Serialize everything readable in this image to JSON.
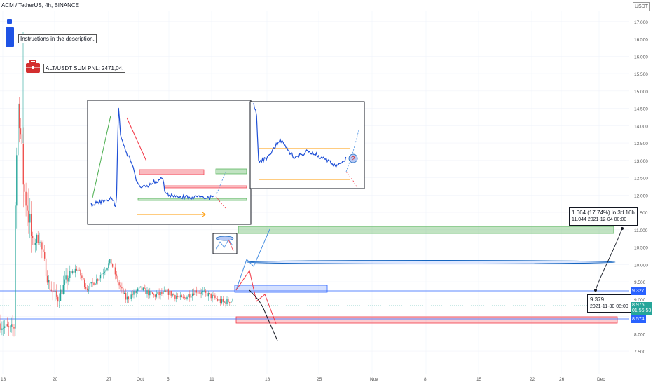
{
  "header": {
    "symbol_title": "ACM / TetherUS, 4h, BINANCE"
  },
  "notes": {
    "instructions": "Instructions in the description.",
    "pnl": "ALT/USDT SUM PNL: 2471,04."
  },
  "measure_tooltip": {
    "line1": "1.664 (17.74%) in 3d 16h",
    "line2": "11.044     2021-12-04  00:00"
  },
  "low_tooltip": {
    "line1": "9.379",
    "line2": "2021-11-30 08:00"
  },
  "price_tags": {
    "top": "USDT",
    "level_upper": "9.327",
    "current_price": "8.976",
    "countdown": "01:56:53",
    "level_lower": "8.574"
  },
  "colors": {
    "up": "#26a69a",
    "down": "#ef5350",
    "level_line": "#2962ff",
    "target_green": "#4caf50",
    "stop_red": "#f23645",
    "scenario_blue": "#1565c0"
  },
  "icons": [
    "info-icon",
    "briefcase-icon",
    "question-icon"
  ],
  "chart_data": {
    "type": "candlestick",
    "title": "ACM / TetherUS, 4h, BINANCE",
    "y_axis": {
      "position": "right",
      "ticks": [
        "17.000",
        "16.500",
        "16.000",
        "15.500",
        "15.000",
        "14.500",
        "14.000",
        "13.500",
        "13.000",
        "12.500",
        "12.000",
        "11.500",
        "11.000",
        "10.500",
        "10.000",
        "9.500",
        "9.000",
        "8.500",
        "8.000",
        "7.500"
      ],
      "range": [
        7.3,
        17.3
      ]
    },
    "x_axis": {
      "ticks": [
        "13",
        "20",
        "27",
        "Oct",
        "5",
        "11",
        "18",
        "25",
        "Nov",
        "8",
        "15",
        "22",
        "26",
        "Dec"
      ]
    },
    "grid": true,
    "price_path_hint": {
      "start": 8.1,
      "spike_high": 16.7,
      "peak_area": 14.2,
      "late_september_range": [
        8.6,
        10.6
      ],
      "october_range": [
        8.8,
        9.6
      ],
      "last_close": 8.976
    },
    "horizontal_levels": [
      9.327,
      8.574
    ],
    "zones": [
      {
        "label": "target",
        "color": "green",
        "from": 11.0,
        "to": 11.18
      },
      {
        "label": "entry",
        "color": "blue",
        "from": 9.4,
        "to": 9.55
      },
      {
        "label": "stop",
        "color": "red",
        "from": 8.47,
        "to": 8.62
      }
    ]
  }
}
